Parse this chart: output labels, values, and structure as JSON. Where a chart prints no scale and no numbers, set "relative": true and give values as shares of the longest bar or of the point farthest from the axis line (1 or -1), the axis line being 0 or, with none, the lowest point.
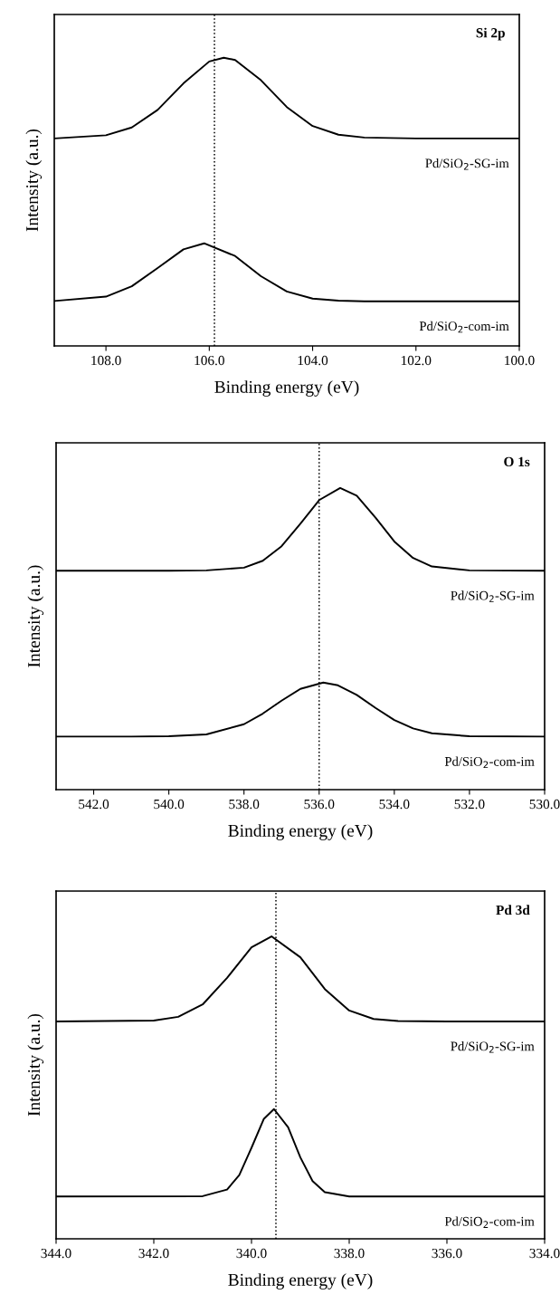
{
  "chart_data": [
    {
      "type": "line",
      "relative": true,
      "xlabel": "Binding energy (eV)",
      "ylabel": "Intensity (a.u.)",
      "annotations": [
        "Si 2p"
      ],
      "tick_labels": "x",
      "grid": false,
      "legend": false,
      "marker": "none",
      "line_style": "solid",
      "xlim": [
        109.0,
        100.0
      ],
      "xticks": [
        {
          "value": 108,
          "label": "108.0"
        },
        {
          "value": 106,
          "label": "106.0"
        },
        {
          "value": 104,
          "label": "104.0"
        },
        {
          "value": 102,
          "label": "102.0"
        },
        {
          "value": 100,
          "label": "100.0"
        }
      ],
      "ref_lines": [
        {
          "axis": "x",
          "value": 105.9,
          "label": null,
          "color": "#000000",
          "line_style": "dotted"
        }
      ],
      "series": [
        {
          "name": "Pd/SiO$_{2}$-SG-im",
          "color": "#000000",
          "x": [
            109,
            108,
            107.5,
            107,
            106.5,
            106,
            105.72,
            105.5,
            105,
            104.5,
            104,
            103.5,
            103,
            102,
            100
          ],
          "values": [
            0.72,
            0.731,
            0.758,
            0.819,
            0.911,
            0.987,
            1.0,
            0.992,
            0.922,
            0.829,
            0.763,
            0.733,
            0.723,
            0.72,
            0.72
          ]
        },
        {
          "name": "Pd/SiO$_{2}$-com-im",
          "color": "#000000",
          "x": [
            109,
            108,
            107.5,
            107,
            106.5,
            106.1,
            105.5,
            105,
            104.5,
            104,
            103.5,
            103,
            102,
            100
          ],
          "values": [
            0.156,
            0.171,
            0.207,
            0.27,
            0.335,
            0.356,
            0.312,
            0.242,
            0.189,
            0.164,
            0.157,
            0.155,
            0.155,
            0.155
          ]
        }
      ]
    },
    {
      "type": "line",
      "relative": true,
      "xlabel": "Binding energy (eV)",
      "ylabel": "Intensity (a.u.)",
      "annotations": [
        "O 1s"
      ],
      "tick_labels": "x",
      "grid": false,
      "legend": false,
      "marker": "none",
      "line_style": "solid",
      "xlim": [
        543.0,
        530.0
      ],
      "xticks": [
        {
          "value": 542,
          "label": "542.0"
        },
        {
          "value": 540,
          "label": "540.0"
        },
        {
          "value": 538,
          "label": "538.0"
        },
        {
          "value": 536,
          "label": "536.0"
        },
        {
          "value": 534,
          "label": "534.0"
        },
        {
          "value": 532,
          "label": "532.0"
        },
        {
          "value": 530,
          "label": "530.0"
        }
      ],
      "ref_lines": [
        {
          "axis": "x",
          "value": 536.0,
          "label": null,
          "color": "#000000",
          "line_style": "dotted"
        }
      ],
      "series": [
        {
          "name": "Pd/SiO$_{2}$-SG-im",
          "color": "#000000",
          "x": [
            543,
            540,
            539,
            538,
            537.5,
            537,
            536.5,
            536,
            535.44,
            535,
            534.5,
            534,
            533.5,
            533,
            532,
            530
          ],
          "values": [
            0.726,
            0.726,
            0.727,
            0.736,
            0.759,
            0.807,
            0.882,
            0.96,
            1.0,
            0.975,
            0.902,
            0.823,
            0.768,
            0.74,
            0.727,
            0.726
          ]
        },
        {
          "name": "Pd/SiO$_{2}$-com-im",
          "color": "#000000",
          "x": [
            543,
            541,
            540,
            539,
            538,
            537.5,
            537,
            536.5,
            535.89,
            535.5,
            535,
            534.5,
            534,
            533.5,
            533,
            532,
            530
          ],
          "values": [
            0.176,
            0.176,
            0.177,
            0.183,
            0.217,
            0.252,
            0.295,
            0.334,
            0.355,
            0.346,
            0.314,
            0.271,
            0.231,
            0.203,
            0.187,
            0.177,
            0.176
          ]
        }
      ]
    },
    {
      "type": "line",
      "relative": true,
      "xlabel": "Binding energy (eV)",
      "ylabel": "Intensity (a.u.)",
      "annotations": [
        "Pd 3d"
      ],
      "tick_labels": "x",
      "grid": false,
      "legend": false,
      "marker": "none",
      "line_style": "solid",
      "xlim": [
        344.0,
        334.0
      ],
      "xticks": [
        {
          "value": 344,
          "label": "344.0"
        },
        {
          "value": 342,
          "label": "342.0"
        },
        {
          "value": 340,
          "label": "340.0"
        },
        {
          "value": 338,
          "label": "338.0"
        },
        {
          "value": 336,
          "label": "336.0"
        },
        {
          "value": 334,
          "label": "334.0"
        }
      ],
      "ref_lines": [
        {
          "axis": "x",
          "value": 339.5,
          "label": null,
          "color": "#000000",
          "line_style": "dotted"
        }
      ],
      "series": [
        {
          "name": "Pd/SiO$_{2}$-SG-im",
          "color": "#000000",
          "x": [
            344,
            342,
            341.5,
            341,
            340.5,
            340,
            339.59,
            339,
            338.5,
            338,
            337.5,
            337,
            336,
            334
          ],
          "values": [
            0.719,
            0.722,
            0.734,
            0.775,
            0.863,
            0.964,
            1.0,
            0.931,
            0.826,
            0.755,
            0.727,
            0.72,
            0.719,
            0.719
          ]
        },
        {
          "name": "Pd/SiO$_{2}$-com-im",
          "color": "#000000",
          "x": [
            344,
            341,
            340.5,
            340.25,
            340,
            339.75,
            339.54,
            339.25,
            339,
            338.75,
            338.5,
            338,
            336,
            334
          ],
          "values": [
            0.14,
            0.141,
            0.163,
            0.211,
            0.301,
            0.396,
            0.429,
            0.369,
            0.269,
            0.191,
            0.154,
            0.14,
            0.14,
            0.14
          ]
        }
      ]
    }
  ]
}
